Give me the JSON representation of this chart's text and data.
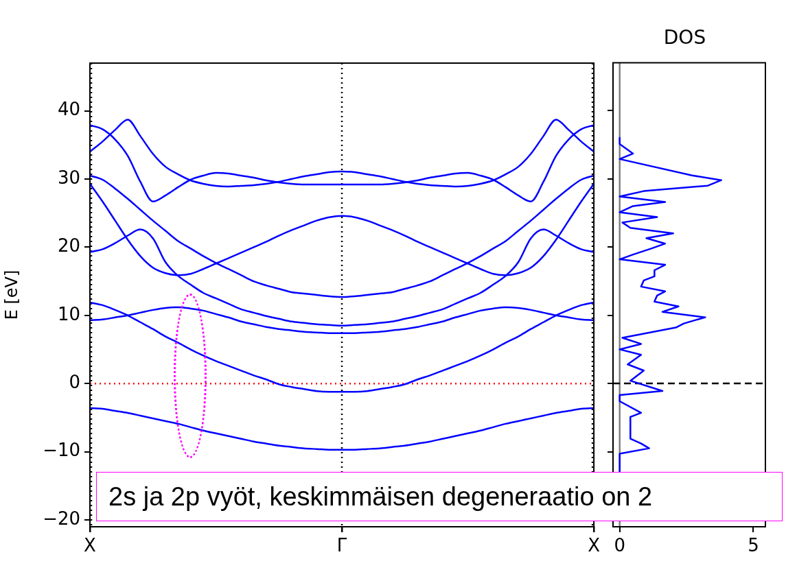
{
  "chart_data": [
    {
      "type": "line",
      "ylabel": "E [eV]",
      "ylim": [
        -21,
        47
      ],
      "categories": [
        "X",
        null,
        null,
        null,
        null,
        null,
        null,
        null,
        null,
        null,
        null,
        null,
        null,
        null,
        null,
        null,
        null,
        null,
        null,
        null,
        "Γ",
        null,
        null,
        null,
        null,
        null,
        null,
        null,
        null,
        null,
        null,
        null,
        null,
        null,
        null,
        null,
        null,
        null,
        null,
        null,
        "X"
      ],
      "yticks": [
        {
          "value": -20,
          "label": "−20"
        },
        {
          "value": -10,
          "label": "−10"
        },
        0,
        10,
        20,
        30,
        40
      ],
      "grid": false,
      "legend": false,
      "series": [
        {
          "color": "#0000ff",
          "values": [
            37.9,
            37.3,
            35.8,
            33.4,
            29.6,
            26.7,
            27.6,
            28.8,
            29.9,
            30.5,
            30.9,
            30.8,
            30.5,
            30.2,
            29.8,
            29.5,
            29.3,
            29.2,
            29.2,
            29.2,
            29.2,
            29.2,
            29.2,
            29.2,
            29.3,
            29.5,
            29.8,
            30.2,
            30.5,
            30.8,
            30.9,
            30.5,
            29.9,
            28.8,
            27.6,
            26.7,
            29.6,
            33.4,
            35.8,
            37.3,
            37.9
          ]
        },
        {
          "color": "#0000ff",
          "values": [
            34.0,
            35.5,
            37.2,
            38.7,
            36.3,
            33.7,
            31.8,
            30.7,
            29.8,
            29.3,
            29.0,
            28.9,
            29.0,
            29.1,
            29.3,
            29.6,
            30.0,
            30.4,
            30.7,
            31.0,
            31.1,
            31.0,
            30.7,
            30.4,
            30.0,
            29.6,
            29.3,
            29.1,
            29.0,
            28.9,
            29.0,
            29.3,
            29.8,
            30.7,
            31.8,
            33.7,
            36.3,
            38.7,
            37.2,
            35.5,
            34.0
          ]
        },
        {
          "color": "#0000ff",
          "values": [
            30.5,
            29.9,
            28.6,
            27.1,
            25.5,
            23.9,
            22.4,
            20.9,
            19.8,
            18.7,
            17.7,
            16.8,
            15.9,
            15.0,
            14.4,
            13.9,
            13.4,
            13.2,
            13.0,
            12.8,
            12.7,
            12.8,
            13.0,
            13.2,
            13.4,
            13.9,
            14.4,
            15.0,
            15.9,
            16.8,
            17.7,
            18.7,
            19.8,
            20.9,
            22.4,
            23.9,
            25.5,
            27.1,
            28.6,
            29.9,
            30.5
          ]
        },
        {
          "color": "#0000ff",
          "values": [
            29.3,
            26.7,
            23.9,
            21.1,
            18.7,
            17.0,
            16.2,
            15.9,
            16.1,
            16.8,
            17.6,
            18.4,
            19.2,
            20.0,
            20.8,
            21.7,
            22.5,
            23.2,
            23.9,
            24.4,
            24.6,
            24.4,
            23.9,
            23.2,
            22.5,
            21.7,
            20.8,
            20.0,
            19.2,
            18.4,
            17.6,
            16.8,
            16.1,
            15.9,
            16.2,
            17.0,
            18.7,
            21.1,
            23.9,
            26.7,
            29.3
          ]
        },
        {
          "color": "#0000ff",
          "values": [
            19.3,
            19.7,
            20.6,
            21.7,
            22.6,
            21.3,
            17.8,
            15.8,
            14.5,
            13.3,
            12.5,
            11.7,
            10.9,
            10.4,
            9.9,
            9.5,
            9.1,
            8.9,
            8.7,
            8.6,
            8.5,
            8.6,
            8.7,
            8.9,
            9.1,
            9.5,
            9.9,
            10.4,
            10.9,
            11.7,
            12.5,
            13.3,
            14.5,
            15.8,
            17.8,
            21.3,
            22.6,
            21.7,
            20.6,
            19.7,
            19.3
          ]
        },
        {
          "color": "#0000ff",
          "values": [
            11.9,
            11.5,
            10.8,
            10.0,
            9.0,
            8.0,
            6.9,
            6.0,
            5.0,
            4.1,
            3.3,
            2.6,
            1.9,
            1.2,
            0.6,
            -0.1,
            -0.5,
            -0.8,
            -1.1,
            -1.2,
            -1.2,
            -1.2,
            -1.1,
            -0.8,
            -0.5,
            -0.1,
            0.6,
            1.2,
            1.9,
            2.6,
            3.3,
            4.1,
            5.0,
            6.0,
            6.9,
            8.0,
            9.0,
            10.0,
            10.8,
            11.5,
            11.9
          ]
        },
        {
          "color": "#0000ff",
          "values": [
            9.3,
            9.4,
            9.7,
            10.0,
            10.4,
            10.8,
            11.1,
            11.2,
            11.0,
            10.7,
            10.2,
            9.7,
            9.1,
            8.7,
            8.3,
            8.0,
            7.8,
            7.6,
            7.5,
            7.4,
            7.4,
            7.4,
            7.5,
            7.6,
            7.8,
            8.0,
            8.3,
            8.7,
            9.1,
            9.7,
            10.2,
            10.7,
            11.0,
            11.2,
            11.1,
            10.8,
            10.4,
            10.0,
            9.7,
            9.4,
            9.3
          ]
        },
        {
          "color": "#0000ff",
          "values": [
            -3.6,
            -3.7,
            -4.0,
            -4.3,
            -4.7,
            -5.1,
            -5.5,
            -5.9,
            -6.4,
            -6.9,
            -7.3,
            -7.7,
            -8.1,
            -8.5,
            -8.8,
            -9.1,
            -9.3,
            -9.5,
            -9.6,
            -9.7,
            -9.7,
            -9.7,
            -9.6,
            -9.5,
            -9.3,
            -9.1,
            -8.8,
            -8.5,
            -8.1,
            -7.7,
            -7.3,
            -6.9,
            -6.4,
            -5.9,
            -5.5,
            -5.1,
            -4.7,
            -4.3,
            -4.0,
            -3.7,
            -3.6
          ]
        }
      ],
      "ref_lines": [
        {
          "axis": "x",
          "value": "X",
          "color": "#000000",
          "line_style": "dotted"
        },
        {
          "axis": "x",
          "value": "Γ",
          "color": "#000000",
          "line_style": "dotted"
        },
        {
          "axis": "y",
          "value": 0,
          "color": "#ff0000",
          "line_style": "dotted"
        }
      ],
      "annotations": [
        "2s ja 2p vyöt, keskimmäisen degeneraatio on 2"
      ]
    },
    {
      "type": "line",
      "title": "DOS",
      "xlim": [
        -0.25,
        5.45
      ],
      "ylim": [
        -21,
        47
      ],
      "xticks": [
        0,
        5
      ],
      "yticks": [
        -20,
        -10,
        0,
        10,
        20,
        30,
        40
      ],
      "tick_labels": "x",
      "grid": false,
      "legend": false,
      "series": [
        {
          "color": "#0000ff",
          "x": [
            0,
            0,
            0.5,
            0,
            2.7,
            3.8,
            3.3,
            0.9,
            0,
            1.7,
            0.5,
            0,
            1.4,
            0.1,
            0.4,
            2.0,
            1.0,
            1.7,
            1.2,
            0.5,
            0,
            1.7,
            1.3,
            1.3,
            0.9,
            0.8,
            1.7,
            1.4,
            1.3,
            2.2,
            1.6,
            3.2,
            2.4,
            2.1,
            0.1,
            0.8,
            0,
            0.8,
            0.3,
            0.9,
            0.4,
            1.6,
            0,
            0,
            0.8,
            0.4,
            0.4,
            0.8,
            1.1,
            0,
            0
          ],
          "values": [
            36.0,
            35.1,
            33.7,
            32.9,
            30.5,
            29.8,
            29.0,
            28.2,
            27.4,
            26.6,
            26.0,
            25.1,
            24.4,
            23.6,
            22.8,
            22.0,
            21.3,
            20.5,
            19.8,
            18.9,
            18.2,
            17.4,
            16.6,
            15.7,
            15.1,
            14.2,
            13.5,
            12.9,
            12.0,
            11.3,
            10.5,
            9.7,
            8.8,
            8.2,
            6.7,
            5.8,
            5.0,
            4.2,
            2.8,
            1.9,
            0.4,
            -1.1,
            -1.7,
            -2.6,
            -4.3,
            -4.9,
            -8.1,
            -8.8,
            -9.5,
            -10.3,
            -13.0
          ]
        }
      ],
      "ref_lines": [
        {
          "axis": "x",
          "value": 0,
          "color": "#808080",
          "line_style": "solid"
        },
        {
          "axis": "y",
          "value": 0,
          "color": "#000000",
          "line_style": "dashed"
        }
      ]
    }
  ]
}
